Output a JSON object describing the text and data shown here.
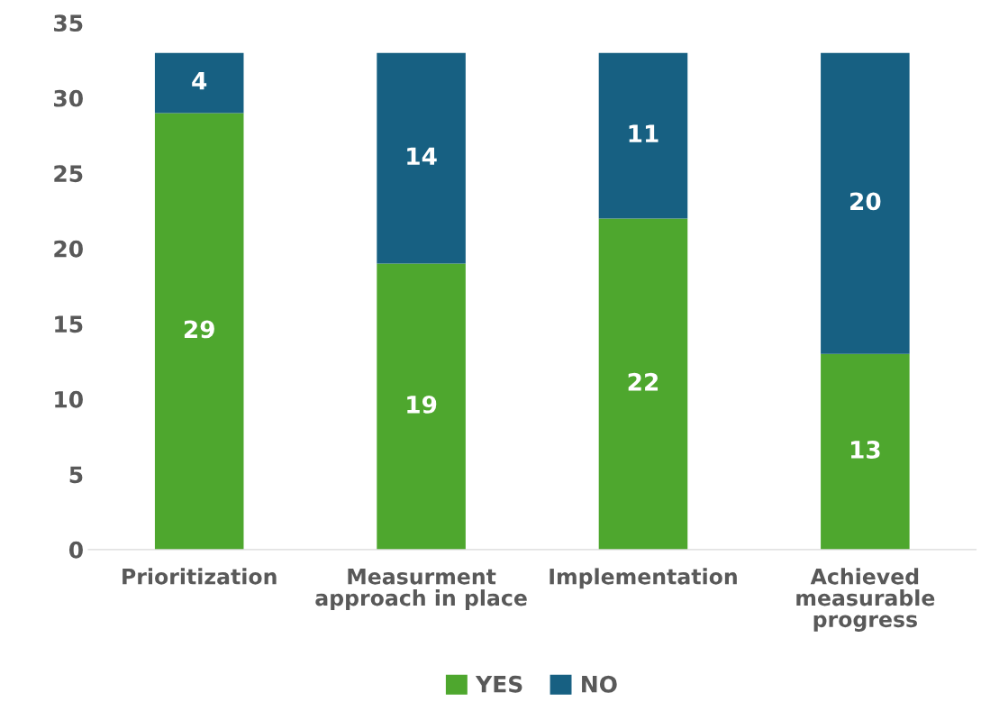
{
  "chart_data": {
    "type": "bar",
    "stacked": true,
    "categories": [
      "Prioritization",
      "Measurment approach in place",
      "Implementation",
      "Achieved measurable progress"
    ],
    "series": [
      {
        "name": "YES",
        "color": "#4ea72e",
        "values": [
          29,
          19,
          22,
          13
        ]
      },
      {
        "name": "NO",
        "color": "#176082",
        "values": [
          4,
          14,
          11,
          20
        ]
      }
    ],
    "ylim": [
      0,
      35
    ],
    "yticks": [
      0,
      5,
      10,
      15,
      20,
      25,
      30,
      35
    ],
    "data_labels": true,
    "legend": "bottom",
    "grid": false
  }
}
